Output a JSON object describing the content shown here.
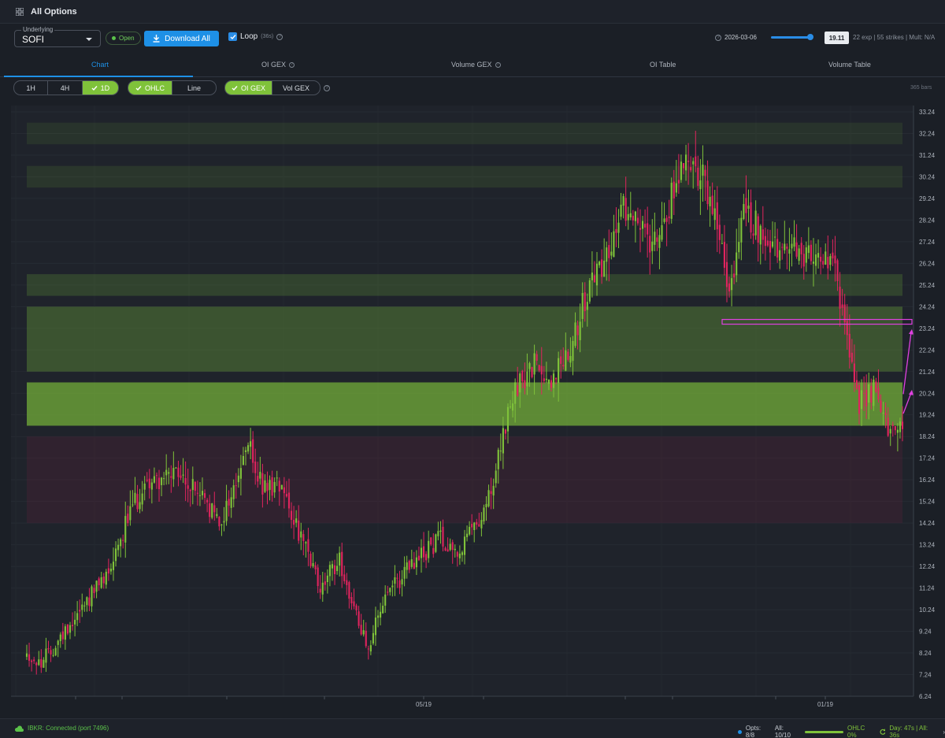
{
  "window": {
    "title": "All Options"
  },
  "toolbar": {
    "underlying_label": "Underlying",
    "underlying_value": "SOFI",
    "market_status": "Open",
    "download_label": "Download All",
    "loop_label": "Loop",
    "loop_interval": "(36s)",
    "expiry_date": "2026-03-06",
    "current_price": "19.11",
    "meta": "22 exp | 55 strikes | Mult: N/A"
  },
  "tabs": [
    {
      "label": "Chart",
      "active": true
    },
    {
      "label": "OI GEX",
      "help": true
    },
    {
      "label": "Volume GEX",
      "help": true
    },
    {
      "label": "OI Table"
    },
    {
      "label": "Volume Table"
    }
  ],
  "controls": {
    "timeframes": [
      "1H",
      "4H",
      "1D"
    ],
    "selected_timeframe": "1D",
    "chart_modes": [
      "OHLC",
      "Line"
    ],
    "selected_mode": "OHLC",
    "gex_modes": [
      "OI GEX",
      "Vol GEX"
    ],
    "selected_gex": "OI GEX",
    "bars_count": "365 bars"
  },
  "chart_data": {
    "type": "candlestick",
    "symbol": "SOFI",
    "y_ticks": [
      33.24,
      32.24,
      31.24,
      30.24,
      29.24,
      28.24,
      27.24,
      26.24,
      25.24,
      24.24,
      23.24,
      22.24,
      21.24,
      20.24,
      19.24,
      18.24,
      17.24,
      16.24,
      15.24,
      14.24,
      13.24,
      12.24,
      11.24,
      10.24,
      9.24,
      8.24,
      7.24,
      6.24
    ],
    "ylim": [
      6.24,
      33.24
    ],
    "x_tick_labels": [
      "05/19",
      "01/19"
    ],
    "bars": 365,
    "price_path": [
      [
        0,
        8.2
      ],
      [
        5,
        7.7
      ],
      [
        12,
        8.6
      ],
      [
        22,
        10.3
      ],
      [
        32,
        11.6
      ],
      [
        42,
        14.5
      ],
      [
        50,
        16.2
      ],
      [
        62,
        16.4
      ],
      [
        72,
        15.6
      ],
      [
        80,
        14.2
      ],
      [
        86,
        15.8
      ],
      [
        92,
        17.9
      ],
      [
        98,
        15.8
      ],
      [
        106,
        16.2
      ],
      [
        114,
        13.5
      ],
      [
        122,
        11.2
      ],
      [
        130,
        12.6
      ],
      [
        136,
        10.2
      ],
      [
        142,
        8.6
      ],
      [
        148,
        10.5
      ],
      [
        156,
        11.8
      ],
      [
        164,
        12.7
      ],
      [
        172,
        13.6
      ],
      [
        180,
        12.9
      ],
      [
        188,
        14.5
      ],
      [
        194,
        15.8
      ],
      [
        198,
        18.4
      ],
      [
        204,
        20.5
      ],
      [
        212,
        21.6
      ],
      [
        218,
        20.8
      ],
      [
        226,
        22.6
      ],
      [
        234,
        25.2
      ],
      [
        244,
        27.4
      ],
      [
        250,
        29.2
      ],
      [
        258,
        27.3
      ],
      [
        266,
        28.6
      ],
      [
        274,
        31.5
      ],
      [
        280,
        30.4
      ],
      [
        288,
        27.4
      ],
      [
        292,
        24.8
      ],
      [
        298,
        28.4
      ],
      [
        306,
        27.8
      ],
      [
        314,
        26.6
      ],
      [
        322,
        26.9
      ],
      [
        330,
        26.2
      ],
      [
        336,
        25.8
      ],
      [
        342,
        22.1
      ],
      [
        346,
        19.8
      ],
      [
        352,
        20.4
      ],
      [
        358,
        18.4
      ],
      [
        364,
        19.1
      ]
    ],
    "gex_bands": [
      {
        "level": 32.24,
        "type": "positive",
        "strength": 0.1
      },
      {
        "level": 30.24,
        "type": "positive",
        "strength": 0.12
      },
      {
        "level": 25.24,
        "type": "positive",
        "strength": 0.2
      },
      {
        "level": 22.74,
        "type": "positive",
        "strength": 0.3
      },
      {
        "level": 19.74,
        "type": "positive",
        "strength": 0.65
      },
      {
        "level": 16.24,
        "type": "negative",
        "strength": 0.2
      }
    ],
    "annotations": [
      {
        "type": "rectangle",
        "price": 23.54,
        "color": "#e040e0"
      },
      {
        "type": "arrow",
        "price": 20.4,
        "color": "#e040e0"
      },
      {
        "type": "arrow",
        "price": 23.2,
        "color": "#e040e0"
      }
    ],
    "colors": {
      "up": "#7fc23a",
      "down": "#e0245e",
      "positive_gex": "#7fc23a",
      "negative_gex": "#7a2040",
      "annotation": "#e040e0"
    }
  },
  "status": {
    "connection": "IBKR: Connected (port 7496)",
    "opts": "Opts: 8/8",
    "all": "All: 10/10",
    "ohlc": "OHLC 0%",
    "timing": "Day: 47s | All: 36s"
  }
}
